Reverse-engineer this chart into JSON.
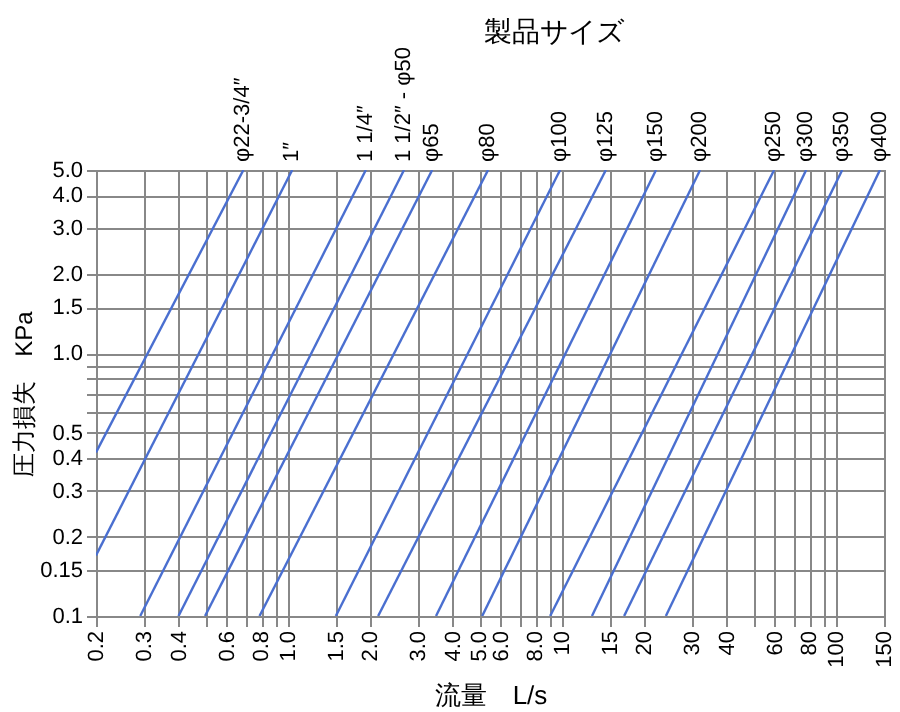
{
  "chart_data": {
    "type": "line",
    "title": "製品サイズ",
    "xlabel": "流量　L/s",
    "ylabel": "圧力損失　KPa",
    "log": "xy",
    "grid": true,
    "legend": false,
    "line_style": "solid",
    "marker": "none",
    "xlim": [
      0.2,
      150
    ],
    "ylim": [
      0.1,
      5.0
    ],
    "xticks": [
      0.2,
      0.3,
      0.4,
      {
        "value": 0.5,
        "label": null
      },
      0.6,
      {
        "value": 0.7,
        "label": null
      },
      0.8,
      {
        "value": 0.9,
        "label": null
      },
      {
        "value": 1,
        "label": "1.0"
      },
      1.5,
      {
        "value": 2,
        "label": "2.0"
      },
      {
        "value": 3,
        "label": "3.0"
      },
      {
        "value": 4,
        "label": "4.0"
      },
      {
        "value": 5,
        "label": "5.0"
      },
      {
        "value": 6,
        "label": "6.0"
      },
      {
        "value": 7,
        "label": null
      },
      {
        "value": 8,
        "label": "8.0"
      },
      {
        "value": 9,
        "label": null
      },
      10,
      15,
      20,
      30,
      40,
      {
        "value": 50,
        "label": null
      },
      60,
      {
        "value": 70,
        "label": null
      },
      80,
      {
        "value": 90,
        "label": null
      },
      100,
      150
    ],
    "yticks": [
      0.1,
      0.15,
      0.2,
      0.3,
      0.4,
      0.5,
      {
        "value": 0.6,
        "label": null
      },
      {
        "value": 0.7,
        "label": null
      },
      {
        "value": 0.8,
        "label": null
      },
      {
        "value": 0.9,
        "label": null
      },
      {
        "value": 1,
        "label": "1.0"
      },
      1.5,
      {
        "value": 2,
        "label": "2.0"
      },
      {
        "value": 3,
        "label": "3.0"
      },
      {
        "value": 4,
        "label": "4.0"
      },
      {
        "value": 5,
        "label": "5.0"
      }
    ],
    "series": [
      {
        "name": "φ22-3/4″",
        "color": "#4a6fd0",
        "x": [
          0.2,
          0.69
        ],
        "values": [
          0.42,
          5.0
        ]
      },
      {
        "name": "1″",
        "color": "#4a6fd0",
        "x": [
          0.2,
          1.04
        ],
        "values": [
          0.17,
          5.0
        ]
      },
      {
        "name": "1 1/4″",
        "color": "#4a6fd0",
        "x": [
          0.29,
          1.93
        ],
        "values": [
          0.1,
          5.0
        ]
      },
      {
        "name": "1 1/2″ - φ50",
        "color": "#4a6fd0",
        "x": [
          0.4,
          2.66
        ],
        "values": [
          0.1,
          5.0
        ]
      },
      {
        "name": "φ65",
        "color": "#4a6fd0",
        "x": [
          0.5,
          3.37
        ],
        "values": [
          0.1,
          5.0
        ]
      },
      {
        "name": "φ80",
        "color": "#4a6fd0",
        "x": [
          0.79,
          5.39
        ],
        "values": [
          0.1,
          5.0
        ]
      },
      {
        "name": "φ100",
        "color": "#4a6fd0",
        "x": [
          1.5,
          9.87
        ],
        "values": [
          0.1,
          5.0
        ]
      },
      {
        "name": "φ125",
        "color": "#4a6fd0",
        "x": [
          2.14,
          14.5
        ],
        "values": [
          0.1,
          5.0
        ]
      },
      {
        "name": "φ150",
        "color": "#4a6fd0",
        "x": [
          3.48,
          22.1
        ],
        "values": [
          0.1,
          5.0
        ]
      },
      {
        "name": "φ200",
        "color": "#4a6fd0",
        "x": [
          5.13,
          32.0
        ],
        "values": [
          0.1,
          5.0
        ]
      },
      {
        "name": "φ250",
        "color": "#4a6fd0",
        "x": [
          9.08,
          59.6
        ],
        "values": [
          0.1,
          5.0
        ]
      },
      {
        "name": "φ300",
        "color": "#4a6fd0",
        "x": [
          12.9,
          78.0
        ],
        "values": [
          0.1,
          5.0
        ]
      },
      {
        "name": "φ350",
        "color": "#4a6fd0",
        "x": [
          16.9,
          105.6
        ],
        "values": [
          0.1,
          5.0
        ]
      },
      {
        "name": "φ400",
        "color": "#4a6fd0",
        "x": [
          24.0,
          145
        ],
        "values": [
          0.1,
          5.0
        ]
      }
    ]
  }
}
